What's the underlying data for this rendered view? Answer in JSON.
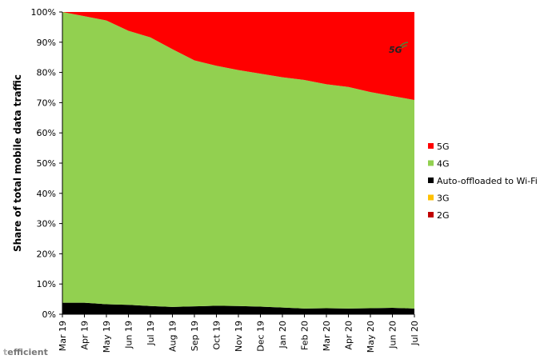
{
  "chart_data": {
    "type": "area",
    "stacked": true,
    "title": "",
    "xlabel": "",
    "ylabel": "Share of total mobile data traffic",
    "ylim": [
      0,
      100
    ],
    "yticks": [
      "0%",
      "10%",
      "20%",
      "30%",
      "40%",
      "50%",
      "60%",
      "70%",
      "80%",
      "90%",
      "100%"
    ],
    "categories": [
      "Mar 19",
      "Apr 19",
      "May 19",
      "Jun 19",
      "Jul 19",
      "Aug 19",
      "Sep 19",
      "Oct 19",
      "Nov 19",
      "Dec 19",
      "Jan 20",
      "Feb 20",
      "Mar 20",
      "Apr 20",
      "May 20",
      "Jun 20",
      "Jul 20"
    ],
    "series": [
      {
        "name": "2G",
        "color": "#c00000",
        "values": [
          0,
          0,
          0,
          0,
          0,
          0,
          0,
          0,
          0,
          0,
          0,
          0,
          0,
          0,
          0,
          0,
          0
        ]
      },
      {
        "name": "3G",
        "color": "#ffc000",
        "values": [
          0,
          0,
          0,
          0,
          0,
          0,
          0,
          0,
          0,
          0,
          0,
          0,
          0,
          0,
          0,
          0,
          0
        ]
      },
      {
        "name": "Auto-offloaded to Wi-Fi",
        "color": "#000000",
        "values": [
          3.8,
          3.8,
          3.3,
          3.1,
          2.7,
          2.4,
          2.6,
          2.8,
          2.7,
          2.5,
          2.2,
          1.9,
          2.0,
          1.9,
          2.0,
          2.1,
          1.9
        ]
      },
      {
        "name": "4G",
        "color": "#92d050",
        "values": [
          96.2,
          94.8,
          93.9,
          90.7,
          88.9,
          85.3,
          81.4,
          79.4,
          78.1,
          77.1,
          76.2,
          75.6,
          74.1,
          73.3,
          71.5,
          70.1,
          69.0
        ]
      },
      {
        "name": "5G",
        "color": "#ff0000",
        "values": [
          0.0,
          1.4,
          2.8,
          6.2,
          8.4,
          12.3,
          16.0,
          17.8,
          19.2,
          20.4,
          21.6,
          22.5,
          23.9,
          24.8,
          26.5,
          27.8,
          29.1
        ]
      }
    ],
    "legend_order": [
      "5G",
      "4G",
      "Auto-offloaded to Wi-Fi",
      "3G",
      "2G"
    ],
    "legend_position": "right",
    "annotation": "5G",
    "grid": false
  },
  "branding": {
    "logo_text": "tefficient",
    "logo_first": "t",
    "logo_rest": "efficient"
  }
}
